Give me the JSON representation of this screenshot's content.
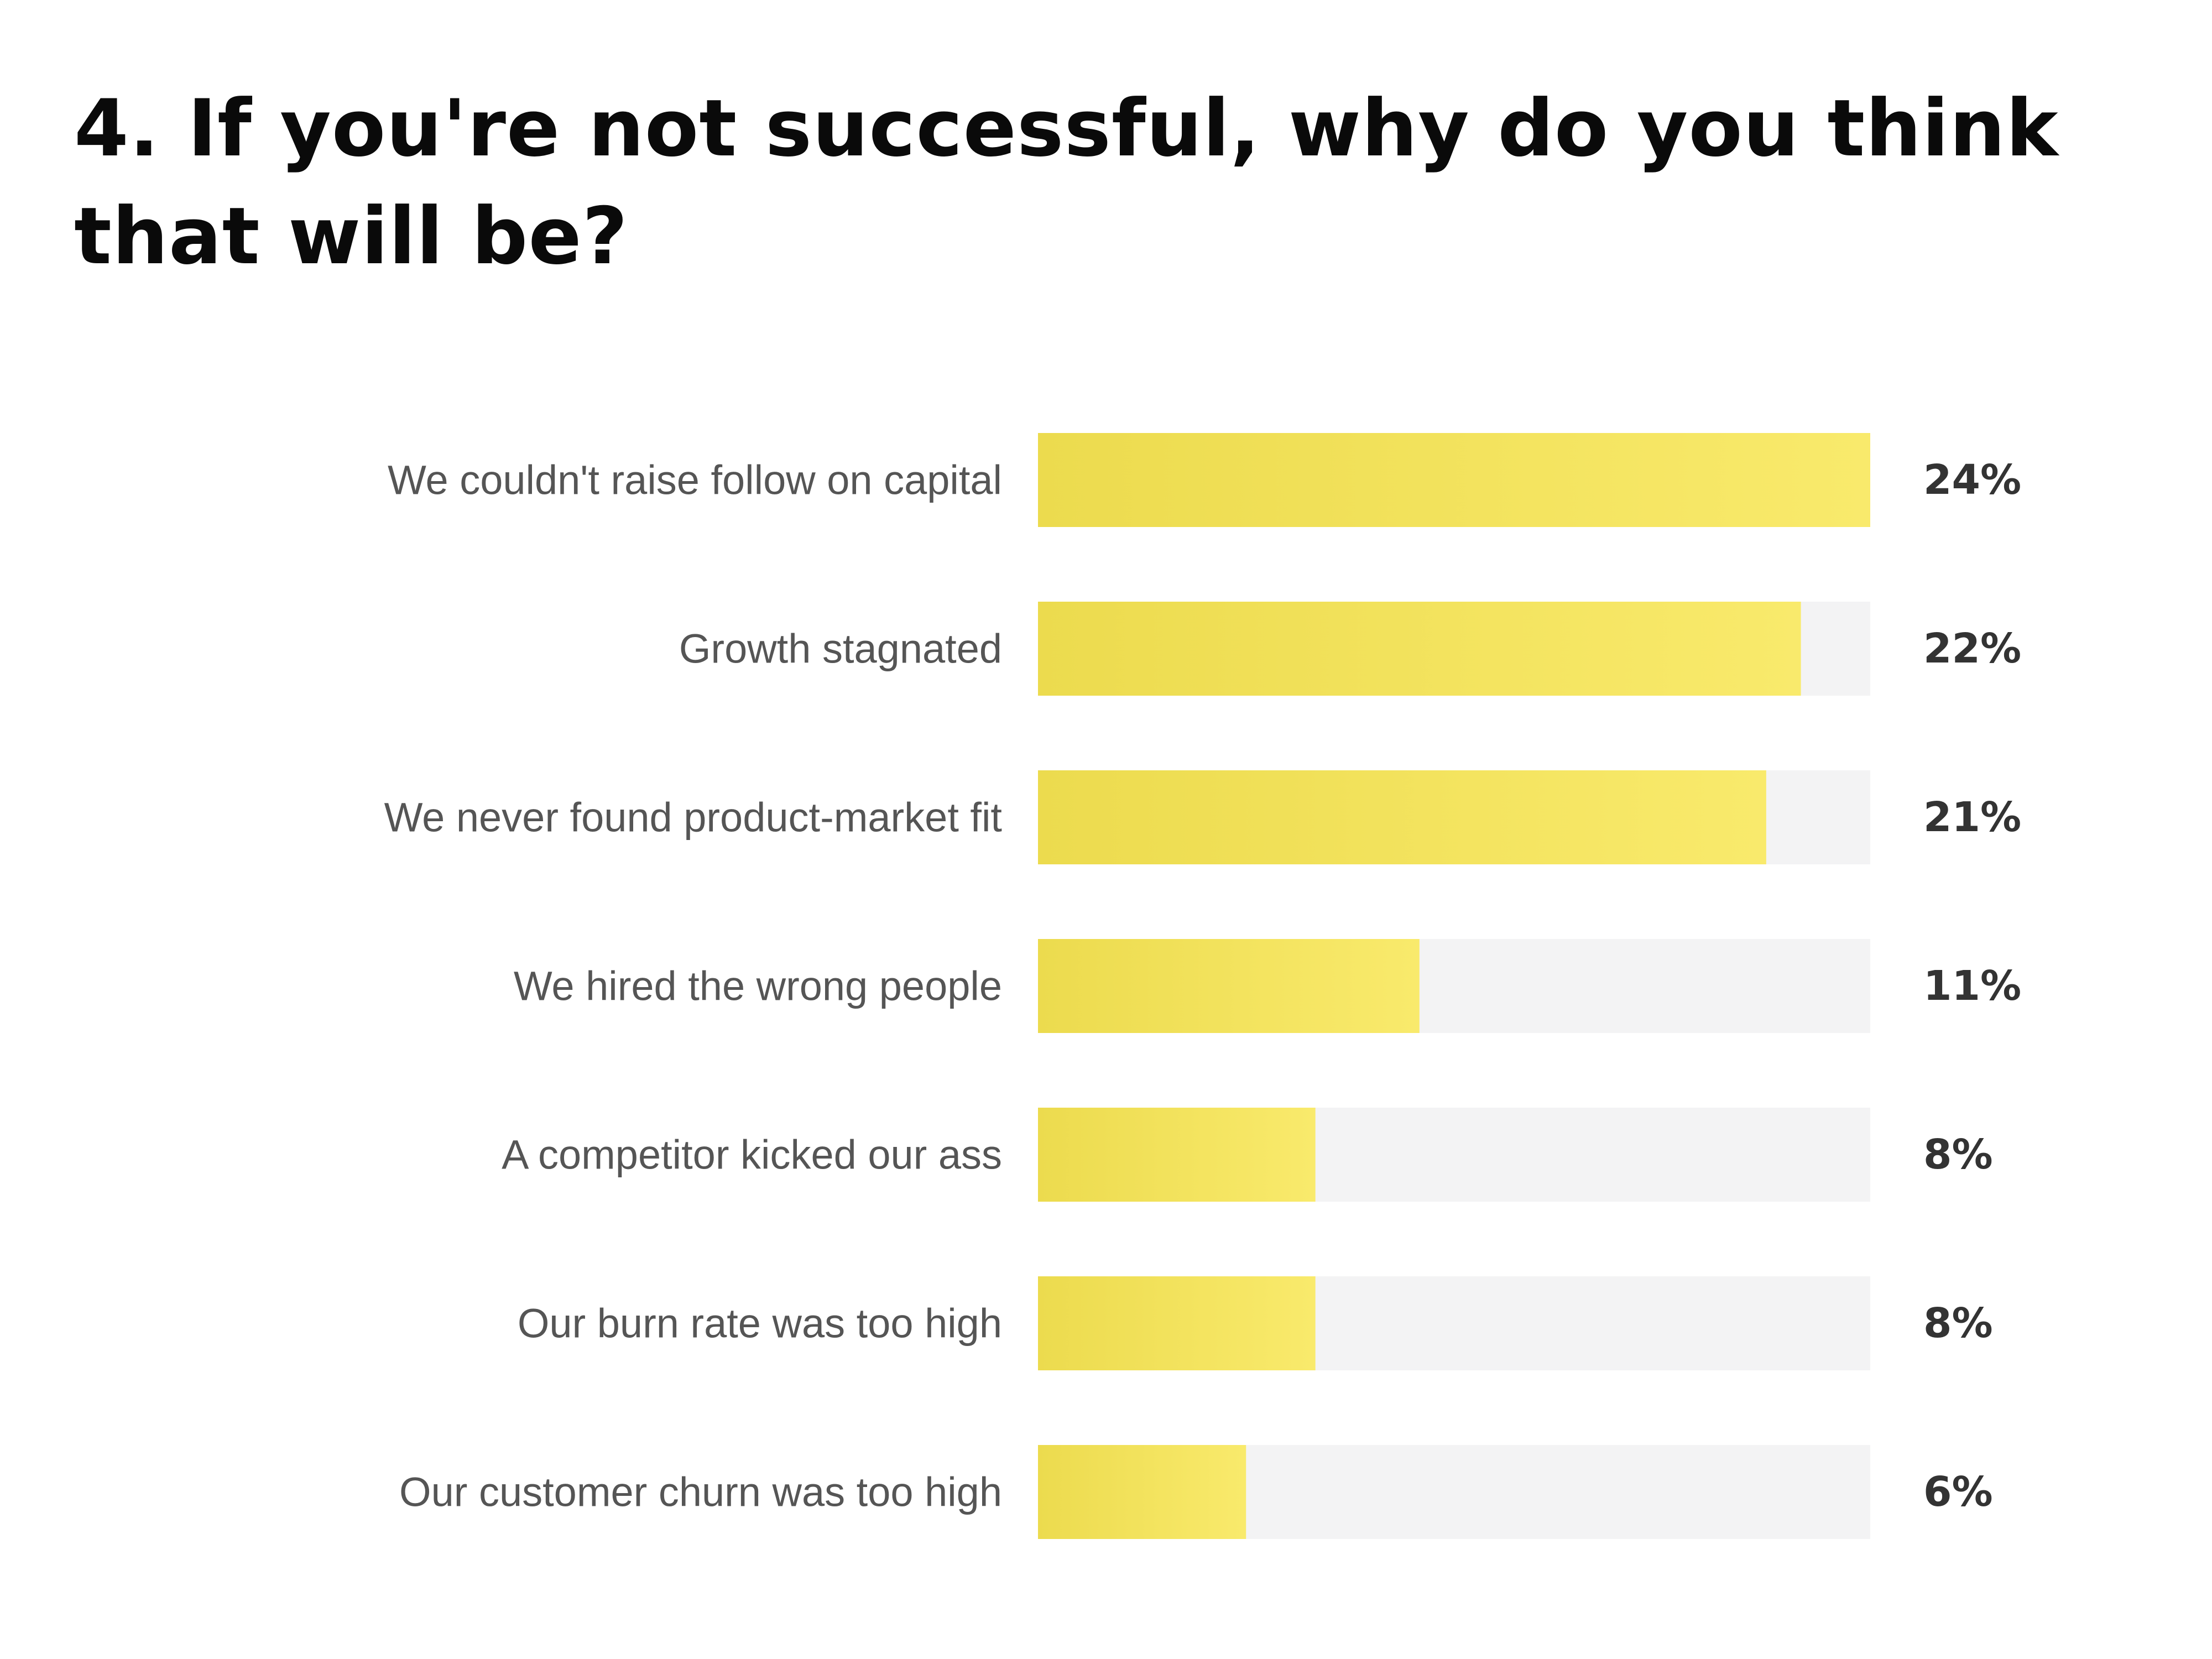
{
  "title": "4. If you're not successful, why do you think that will be?",
  "colors": {
    "bar_fill_start": "#ecdb4e",
    "bar_fill_end": "#f9ea6c",
    "track": "#f3f3f4",
    "category_text": "#555555",
    "value_text": "#333333"
  },
  "chart_data": {
    "type": "bar",
    "orientation": "horizontal",
    "categories": [
      "We couldn't raise follow on capital",
      "Growth stagnated",
      "We never found product-market fit",
      "We hired the wrong people",
      "A competitor kicked our ass",
      "Our burn rate was too high",
      "Our customer churn was too high"
    ],
    "values": [
      24,
      22,
      21,
      11,
      8,
      8,
      6
    ],
    "value_labels": [
      "24%",
      "22%",
      "21%",
      "11%",
      "8%",
      "8%",
      "6%"
    ],
    "xlim": [
      0,
      24
    ],
    "grid": false,
    "legend": "none"
  }
}
